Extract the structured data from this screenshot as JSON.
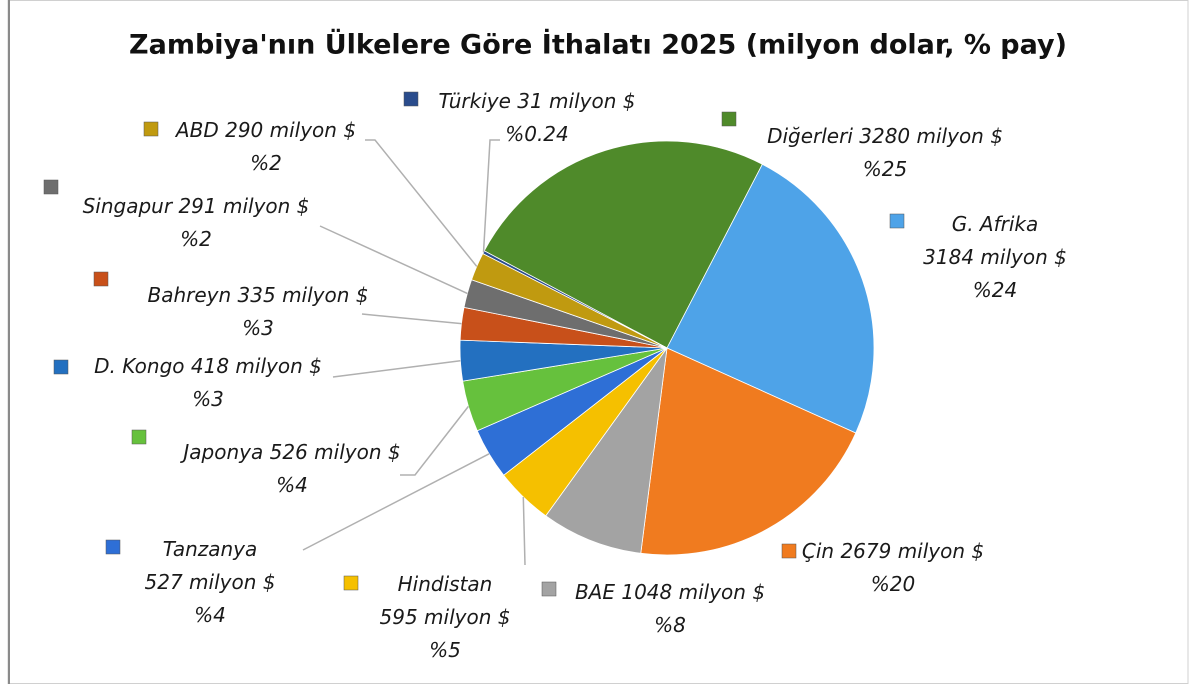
{
  "chart_data": {
    "type": "pie",
    "title": "Zambiya'nın Ülkelere Göre İthalatı 2025 (milyon dolar, % pay)",
    "categories": [
      "Diğerleri",
      "G. Afrika",
      "Çin",
      "BAE",
      "Hindistan",
      "Tanzanya",
      "Japonya",
      "D. Kongo",
      "Bahreyn",
      "Singapur",
      "ABD",
      "Türkiye"
    ],
    "values": [
      3280,
      3184,
      2679,
      1048,
      595,
      527,
      526,
      418,
      335,
      291,
      290,
      31
    ],
    "value_labels": [
      "3280 milyon $",
      "3184 milyon $",
      "2679 milyon $",
      "1048 milyon $",
      "595 milyon $",
      "527 milyon $",
      "526 milyon $",
      "418 milyon $",
      "335 milyon $",
      "291 milyon $",
      "290 milyon $",
      "31 milyon $"
    ],
    "share_labels": [
      "%25",
      "%24",
      "%20",
      "%8",
      "%5",
      "%4",
      "%4",
      "%3",
      "%3",
      "%2",
      "%2",
      "%0.24"
    ],
    "colors": [
      "#4f8a2a",
      "#4ea3e8",
      "#f07b1f",
      "#a3a3a3",
      "#f5c000",
      "#2e6fd6",
      "#66c13d",
      "#2370c0",
      "#c8501a",
      "#6e6e6e",
      "#c09a10",
      "#2a4c8c"
    ]
  }
}
